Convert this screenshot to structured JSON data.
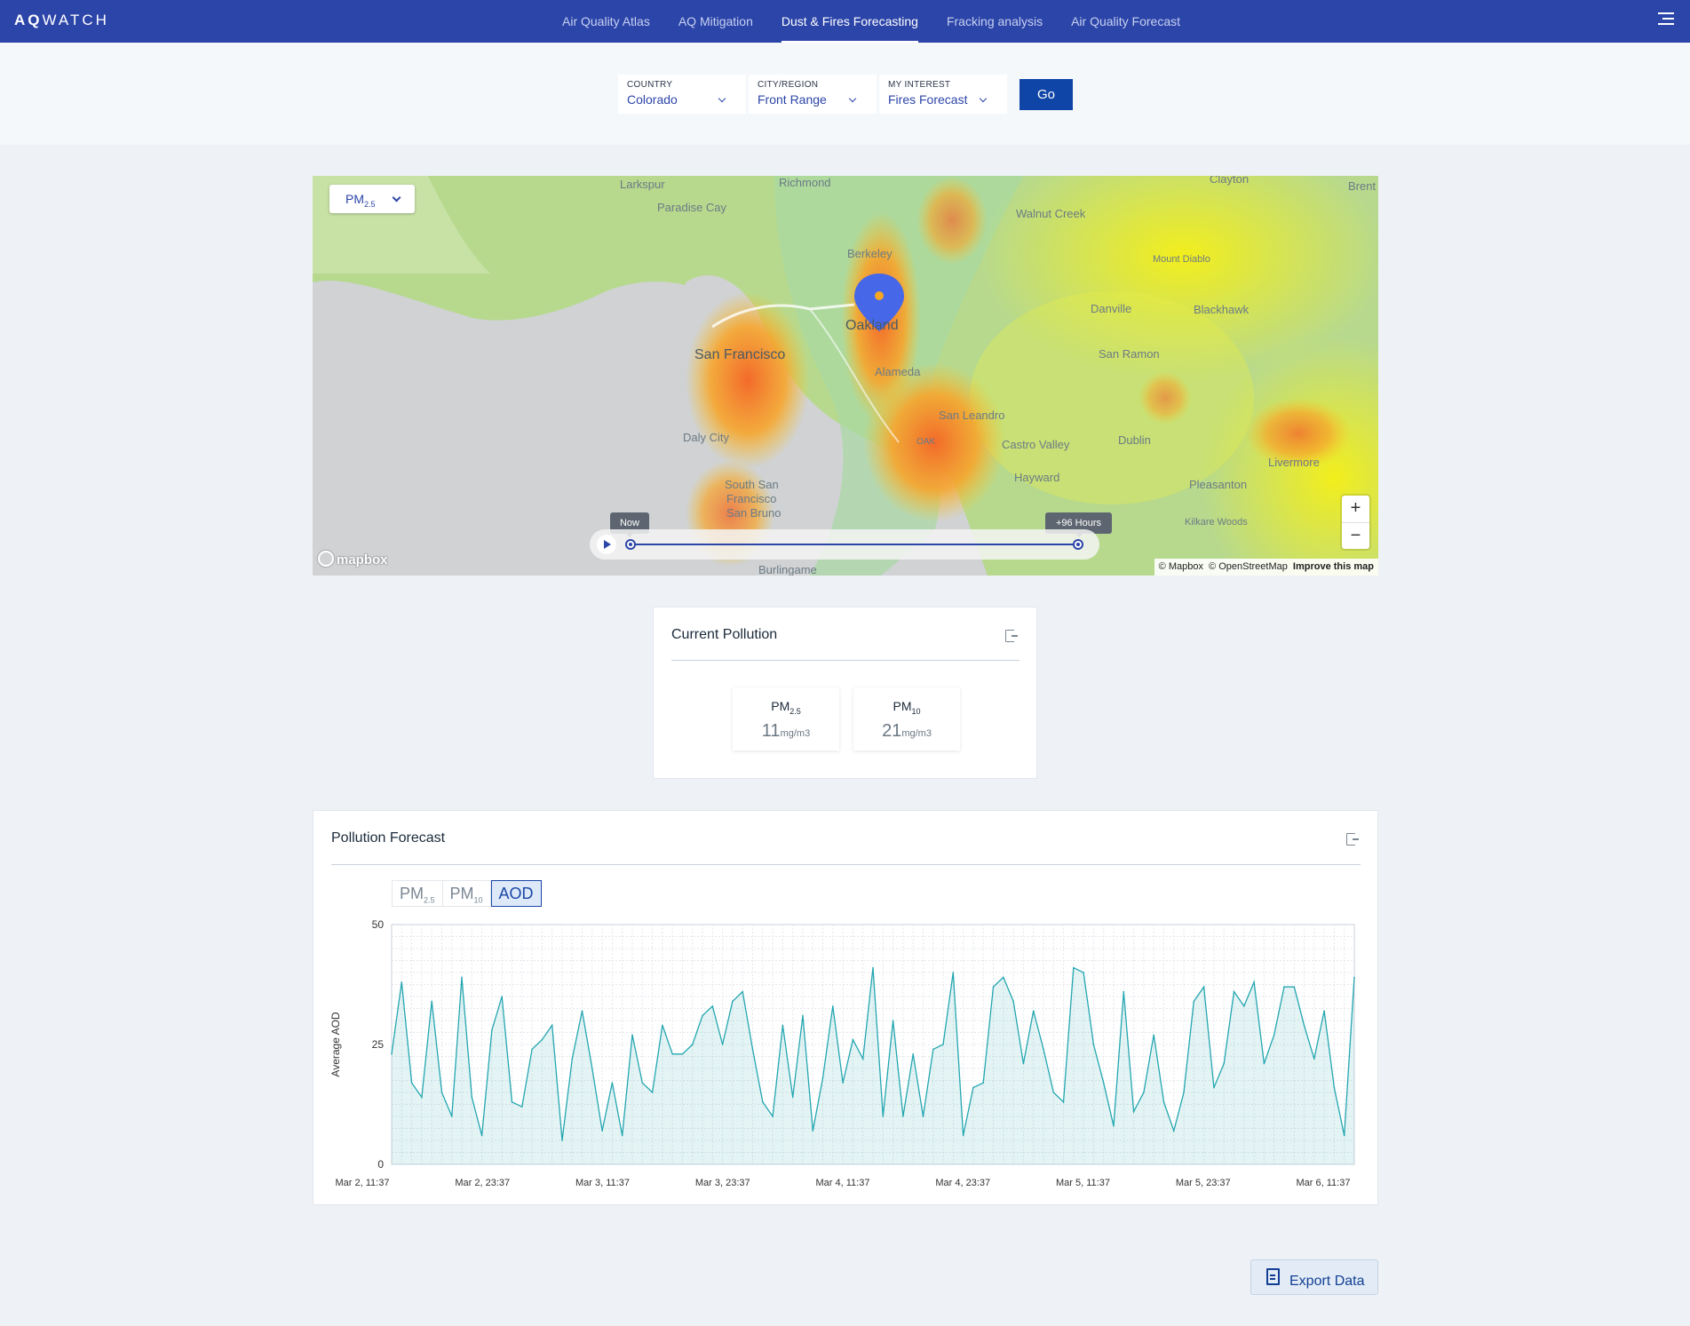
{
  "header": {
    "logo_bold": "AQ",
    "logo_rest": "WATCH",
    "nav": [
      "Air Quality Atlas",
      "AQ Mitigation",
      "Dust & Fires Forecasting",
      "Fracking analysis",
      "Air Quality Forecast"
    ],
    "active_nav": "Dust & Fires Forecasting"
  },
  "filters": {
    "country": {
      "label": "COUNTRY",
      "value": "Colorado"
    },
    "city": {
      "label": "CITY/REGION",
      "value": "Front Range"
    },
    "interest": {
      "label": "MY INTEREST",
      "value": "Fires Forecast"
    },
    "go_label": "Go"
  },
  "map": {
    "pollutant": {
      "base": "PM",
      "sub": "2.5"
    },
    "places": [
      "Larkspur",
      "Richmond",
      "Clayton",
      "Brent",
      "Paradise Cay",
      "Walnut Creek",
      "Berkeley",
      "Mount Diablo",
      "Oakland",
      "Danville",
      "Blackhawk",
      "San Francisco",
      "Alameda",
      "San Ramon",
      "San Leandro",
      "OAK",
      "Daly City",
      "Castro Valley",
      "Dublin",
      "Livermore",
      "Hayward",
      "Pleasanton",
      "South San",
      "Francisco",
      "San Bruno",
      "Kilkare Woods",
      "Burlingame"
    ],
    "timeline": {
      "start_label": "Now",
      "end_label": "+96 Hours"
    },
    "zoom_in": "+",
    "zoom_out": "−",
    "logo_text": "mapbox",
    "attribution": {
      "mapbox": "© Mapbox",
      "osm": "© OpenStreetMap",
      "improve": "Improve this map"
    }
  },
  "current_pollution": {
    "title": "Current Pollution",
    "readings": [
      {
        "base": "PM",
        "sub": "2.5",
        "value": "11",
        "unit": "mg/m3"
      },
      {
        "base": "PM",
        "sub": "10",
        "value": "21",
        "unit": "mg/m3"
      }
    ]
  },
  "forecast": {
    "title": "Pollution Forecast",
    "tabs": [
      {
        "base": "PM",
        "sub": "2.5"
      },
      {
        "base": "PM",
        "sub": "10"
      },
      {
        "base": "AOD",
        "sub": ""
      }
    ],
    "active_tab": "AOD"
  },
  "chart_data": {
    "type": "area",
    "ylabel": "Average AOD",
    "xlabel": "",
    "ylim": [
      0,
      50
    ],
    "yticks": [
      "0",
      "25",
      "50"
    ],
    "xticks": [
      "Mar 2, 11:37",
      "Mar 2, 23:37",
      "Mar 3, 11:37",
      "Mar 3, 23:37",
      "Mar 4, 11:37",
      "Mar 4, 23:37",
      "Mar 5, 11:37",
      "Mar 5, 23:37",
      "Mar 6, 11:37"
    ],
    "grid": true,
    "color": "#24a6b0",
    "values": [
      23,
      38,
      17,
      14,
      34,
      15,
      10,
      39,
      14,
      6,
      28,
      35,
      13,
      12,
      24,
      26,
      29,
      5,
      22,
      32,
      20,
      7,
      17,
      6,
      27,
      17,
      15,
      29,
      23,
      23,
      25,
      31,
      33,
      25,
      34,
      36,
      24,
      13,
      10,
      29,
      14,
      31,
      7,
      18,
      33,
      17,
      26,
      22,
      41,
      10,
      30,
      10,
      23,
      10,
      24,
      25,
      40,
      6,
      16,
      17,
      37,
      39,
      34,
      21,
      32,
      24,
      15,
      13,
      41,
      40,
      25,
      17,
      8,
      36,
      11,
      15,
      27,
      13,
      7,
      15,
      34,
      37,
      16,
      21,
      36,
      33,
      38,
      21,
      27,
      37,
      37,
      29,
      22,
      32,
      16,
      6,
      39
    ]
  },
  "export_label": "Export Data",
  "colors": {
    "header": "#2c45a8",
    "accent": "#0f45a6",
    "line": "#24a6b0"
  }
}
